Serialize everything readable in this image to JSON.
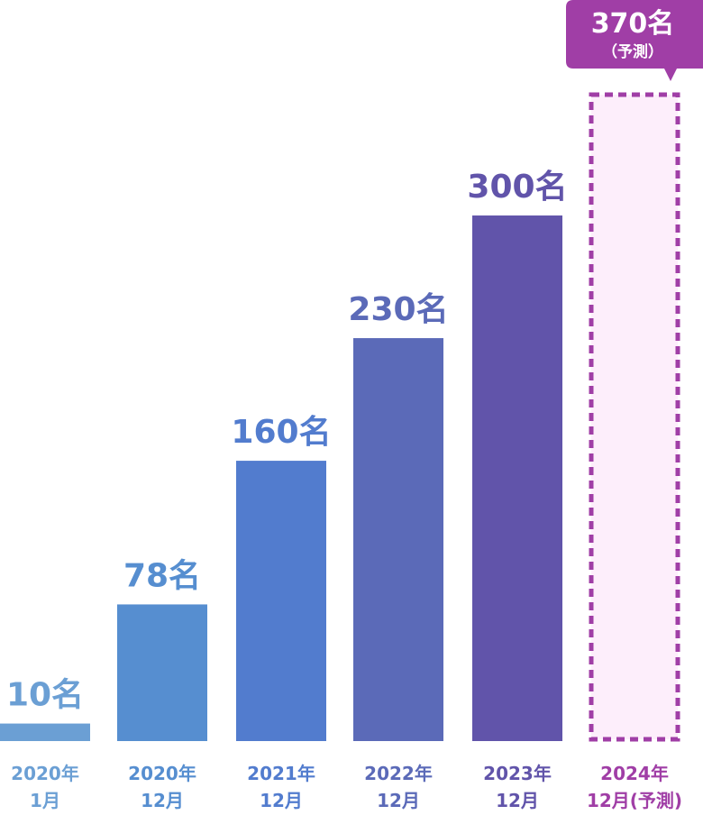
{
  "chart_data": {
    "type": "bar",
    "categories": [
      [
        "2020年",
        "1月"
      ],
      [
        "2020年",
        "12月"
      ],
      [
        "2021年",
        "12月"
      ],
      [
        "2022年",
        "12月"
      ],
      [
        "2023年",
        "12月"
      ],
      [
        "2024年",
        "12月(予測)"
      ]
    ],
    "values": [
      10,
      78,
      160,
      230,
      300,
      370
    ],
    "value_labels": [
      "10名",
      "78名",
      "160名",
      "230名",
      "300名",
      "370名"
    ],
    "forecast_note": "（予測）",
    "forecast_index": 5,
    "ylim": [
      0,
      370
    ],
    "grid": false,
    "colors": [
      "#6b9fd4",
      "#568ed0",
      "#527cce",
      "#5b6ab8",
      "#6154aa",
      "#a03ea6"
    ],
    "forecast_fill": "#fdeefb",
    "title": "",
    "xlabel": "",
    "ylabel": ""
  }
}
